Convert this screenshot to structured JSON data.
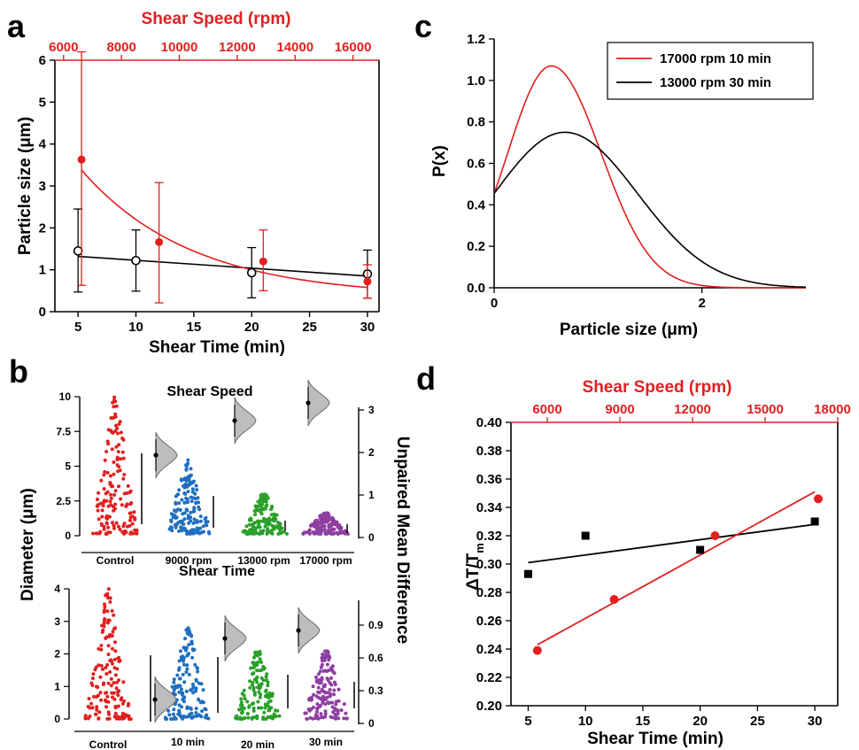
{
  "figure": {
    "panel_letters": [
      "a",
      "b",
      "c",
      "d"
    ]
  },
  "chart_data": [
    {
      "id": "a",
      "type": "scatter",
      "xlabel": "Shear Time (min)",
      "ylabel": "Particle size (μm)",
      "top_xlabel": "Shear Speed (rpm)",
      "xlim": [
        3,
        31
      ],
      "ylim": [
        0,
        6
      ],
      "xticks": [
        5,
        10,
        15,
        20,
        25,
        30
      ],
      "yticks": [
        0,
        1,
        2,
        3,
        4,
        5,
        6
      ],
      "top_xlim": [
        5700,
        16900
      ],
      "top_xticks": [
        6000,
        8000,
        10000,
        12000,
        14000,
        16000
      ],
      "colors": {
        "black": "#000000",
        "red": "#e02020"
      },
      "series": [
        {
          "x": [
            5,
            10,
            20,
            30
          ],
          "y": [
            1.45,
            1.22,
            0.93,
            0.9
          ],
          "yerr_low": [
            0.98,
            0.73,
            0.6,
            0.58
          ],
          "yerr_high": [
            1.0,
            0.73,
            0.6,
            0.57
          ],
          "marker": "open-circle",
          "color": "#000000"
        },
        {
          "x": [
            5.3,
            12.0,
            21.0,
            30.0
          ],
          "y": [
            3.63,
            1.66,
            1.2,
            0.72
          ],
          "yerr_low": [
            3.0,
            1.45,
            0.7,
            0.4
          ],
          "yerr_high": [
            2.6,
            1.42,
            0.75,
            0.4
          ],
          "marker": "filled-circle",
          "color": "#e02020"
        }
      ],
      "fits": [
        {
          "kind": "linear",
          "x": [
            5,
            30
          ],
          "y": [
            1.32,
            0.85
          ],
          "color": "#000000"
        },
        {
          "kind": "exp-decay",
          "x0": 5.3,
          "x1": 30,
          "y0": 3.38,
          "y_inf": 0.35,
          "rate": 0.105,
          "color": "#e02020"
        }
      ]
    },
    {
      "id": "b-top",
      "type": "scatter",
      "title": "Shear Speed",
      "ylabel": "Diameter (μm)",
      "right_ylabel": "Unpaired Mean Difference",
      "categories": [
        "Control",
        "9000 rpm",
        "13000 rpm",
        "17000 rpm"
      ],
      "ylim": [
        0,
        10
      ],
      "yticks": [
        "0",
        "2.5",
        "5",
        "7.5",
        "10"
      ],
      "right_yticks": [
        "0",
        "1",
        "2",
        "3"
      ],
      "colors": [
        "#e02020",
        "#1f6fc0",
        "#2aa02a",
        "#8e3fa0"
      ],
      "series": [
        {
          "name": "Control",
          "range": [
            0,
            10
          ],
          "count": 150
        },
        {
          "name": "9000 rpm",
          "range": [
            0,
            5.5
          ],
          "count": 150
        },
        {
          "name": "13000 rpm",
          "range": [
            0,
            3.0
          ],
          "count": 150
        },
        {
          "name": "17000 rpm",
          "range": [
            0,
            1.7
          ],
          "count": 140
        }
      ],
      "mean_difference": [
        {
          "label": "9000 rpm",
          "value": 1.95
        },
        {
          "label": "13000 rpm",
          "value": 2.45
        },
        {
          "label": "17000 rpm",
          "value": 2.95
        }
      ]
    },
    {
      "id": "b-bottom",
      "type": "scatter",
      "title": "Shear Time",
      "categories": [
        "Control",
        "10 min",
        "20 min",
        "30 min"
      ],
      "ylim": [
        0,
        4
      ],
      "yticks": [
        "0",
        "1",
        "2",
        "3",
        "4"
      ],
      "right_yticks": [
        "0",
        "0.3",
        "0.6",
        "0.9"
      ],
      "colors": [
        "#e02020",
        "#1f6fc0",
        "#2aa02a",
        "#8e3fa0"
      ],
      "series": [
        {
          "name": "Control",
          "range": [
            0,
            4.0
          ],
          "count": 150
        },
        {
          "name": "10 min",
          "range": [
            0,
            2.8
          ],
          "count": 150
        },
        {
          "name": "20 min",
          "range": [
            0,
            2.1
          ],
          "count": 140
        },
        {
          "name": "30 min",
          "range": [
            0,
            2.1
          ],
          "count": 140
        }
      ],
      "mean_difference": [
        {
          "label": "10 min",
          "value": 0.2
        },
        {
          "label": "20 min",
          "value": 0.5
        },
        {
          "label": "30 min",
          "value": 0.58
        }
      ]
    },
    {
      "id": "c",
      "type": "line",
      "xlabel": "Particle size (μm)",
      "ylabel": "P(x)",
      "xlim": [
        0,
        3
      ],
      "ylim": [
        0,
        1.2
      ],
      "xticks": [
        "0",
        "2"
      ],
      "yticks": [
        "0.0",
        "0.2",
        "0.4",
        "0.6",
        "0.8",
        "1.0",
        "1.2"
      ],
      "legend_position": "top-right",
      "series": [
        {
          "name": "17000 rpm 10 min",
          "color": "#e02020",
          "model": "gaussian",
          "peak_x": 0.55,
          "peak_y": 1.07,
          "sigma_left": 0.42,
          "sigma_right": 0.48
        },
        {
          "name": "13000 rpm 30 min",
          "color": "#000000",
          "model": "gaussian",
          "peak_x": 0.68,
          "peak_y": 0.75,
          "sigma_left": 0.68,
          "sigma_right": 0.7
        }
      ]
    },
    {
      "id": "d",
      "type": "scatter",
      "xlabel": "Shear Time (min)",
      "ylabel": "ΔT/T",
      "ylabel_sub": "m",
      "top_xlabel": "Shear Speed (rpm)",
      "xlim": [
        3.5,
        32
      ],
      "ylim": [
        0.2,
        0.4
      ],
      "xticks": [
        5,
        10,
        15,
        20,
        25,
        30
      ],
      "yticks": [
        "0.20",
        "0.22",
        "0.24",
        "0.26",
        "0.28",
        "0.30",
        "0.32",
        "0.34",
        "0.36",
        "0.38",
        "0.40"
      ],
      "top_xlim": [
        4500,
        18000
      ],
      "top_xticks": [
        6000,
        9000,
        12000,
        15000,
        18000
      ],
      "series": [
        {
          "x": [
            5,
            10,
            20,
            30
          ],
          "y": [
            0.293,
            0.32,
            0.31,
            0.33
          ],
          "marker": "square",
          "color": "#000000"
        },
        {
          "x": [
            5.8,
            12.5,
            21.3,
            30.3
          ],
          "y": [
            0.239,
            0.275,
            0.32,
            0.346
          ],
          "marker": "circle",
          "color": "#e02020"
        }
      ],
      "fits": [
        {
          "x": [
            5,
            30
          ],
          "y": [
            0.301,
            0.328
          ],
          "color": "#000000"
        },
        {
          "x": [
            5.8,
            30.0
          ],
          "y": [
            0.243,
            0.351
          ],
          "color": "#e02020"
        }
      ]
    }
  ]
}
